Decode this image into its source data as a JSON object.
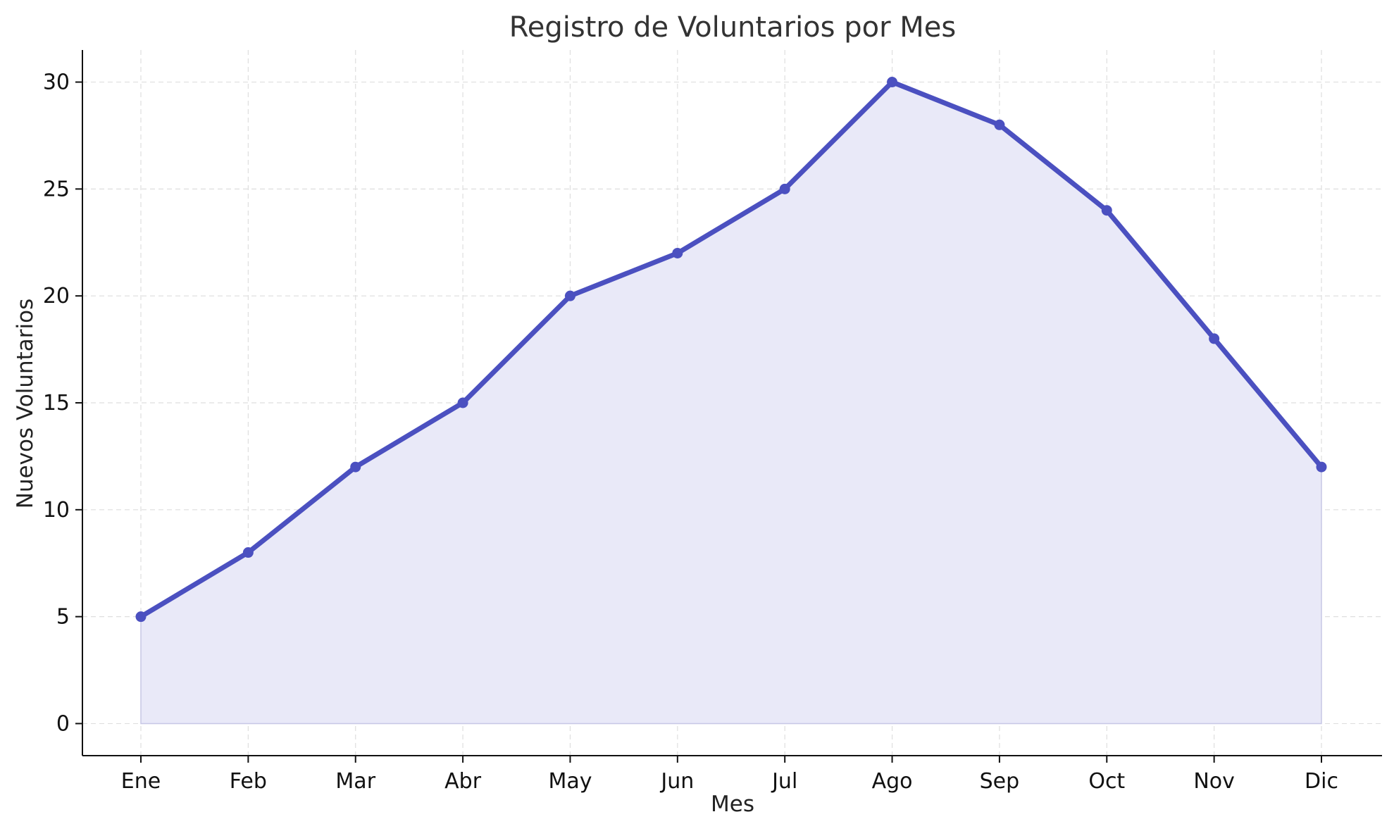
{
  "chart_data": {
    "type": "line",
    "title": "Registro de Voluntarios por Mes",
    "xlabel": "Mes",
    "ylabel": "Nuevos Voluntarios",
    "categories": [
      "Ene",
      "Feb",
      "Mar",
      "Abr",
      "May",
      "Jun",
      "Jul",
      "Ago",
      "Sep",
      "Oct",
      "Nov",
      "Dic"
    ],
    "series": [
      {
        "values": [
          5,
          8,
          12,
          15,
          20,
          22,
          25,
          30,
          28,
          24,
          18,
          12
        ]
      }
    ],
    "ylim": [
      -1.5,
      31.5
    ],
    "yticks": [
      0,
      5,
      10,
      15,
      20,
      25,
      30
    ],
    "grid": true,
    "fill_under_line": true,
    "markers": "circle",
    "colors": {
      "line": "#4b50c0",
      "fill": "#e9e9f8",
      "axis": "#111111",
      "grid": "#d9d9d9"
    }
  }
}
